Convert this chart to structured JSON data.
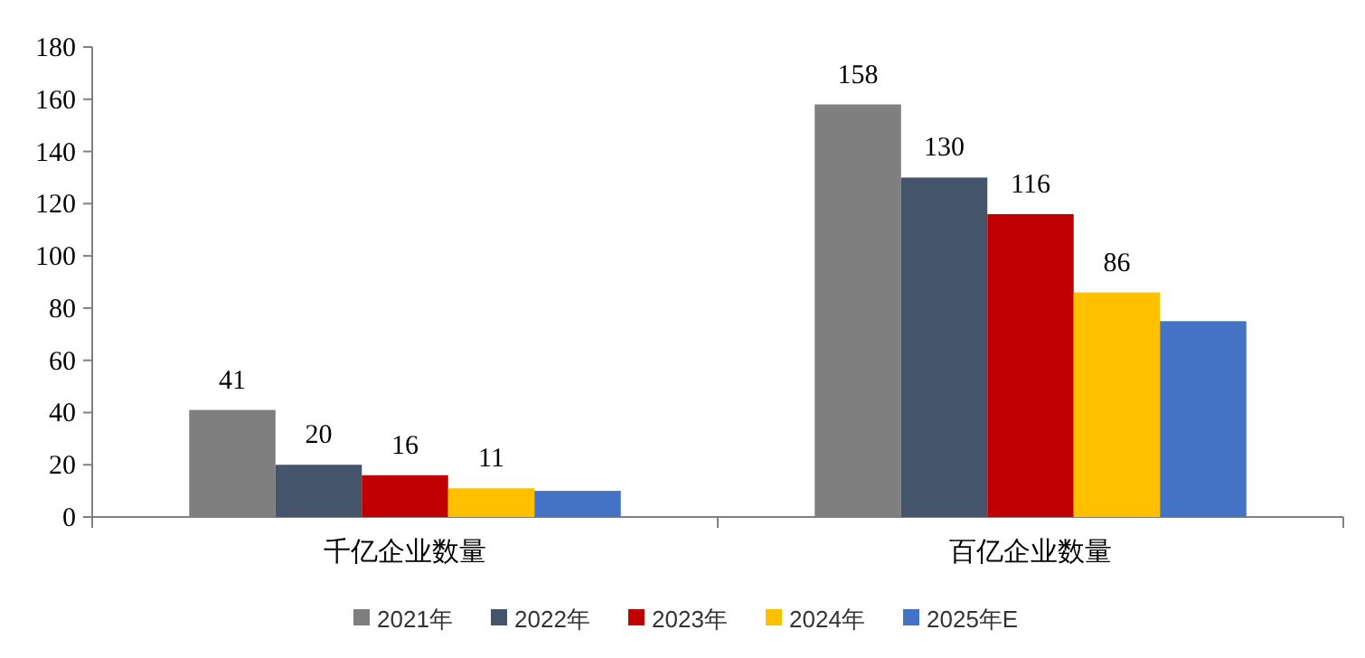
{
  "chart_data": {
    "type": "bar",
    "categories": [
      "千亿企业数量",
      "百亿企业数量"
    ],
    "series": [
      {
        "name": "2021年",
        "color": "#7f7f7f",
        "values": [
          41,
          158
        ],
        "value_labels": [
          "41",
          "158"
        ]
      },
      {
        "name": "2022年",
        "color": "#44546a",
        "values": [
          20,
          130
        ],
        "value_labels": [
          "20",
          "130"
        ]
      },
      {
        "name": "2023年",
        "color": "#c00000",
        "values": [
          16,
          116
        ],
        "value_labels": [
          "16",
          "116"
        ]
      },
      {
        "name": "2024年",
        "color": "#ffc000",
        "values": [
          11,
          86
        ],
        "value_labels": [
          "11",
          "86"
        ]
      },
      {
        "name": "2025年E",
        "color": "#4472c4",
        "values": [
          10,
          75
        ],
        "value_labels": [
          null,
          null
        ]
      }
    ],
    "ylim": [
      0,
      180
    ],
    "yticks": [
      0,
      20,
      40,
      60,
      80,
      100,
      120,
      140,
      160,
      180
    ],
    "grid": false,
    "legend": "bottom"
  }
}
